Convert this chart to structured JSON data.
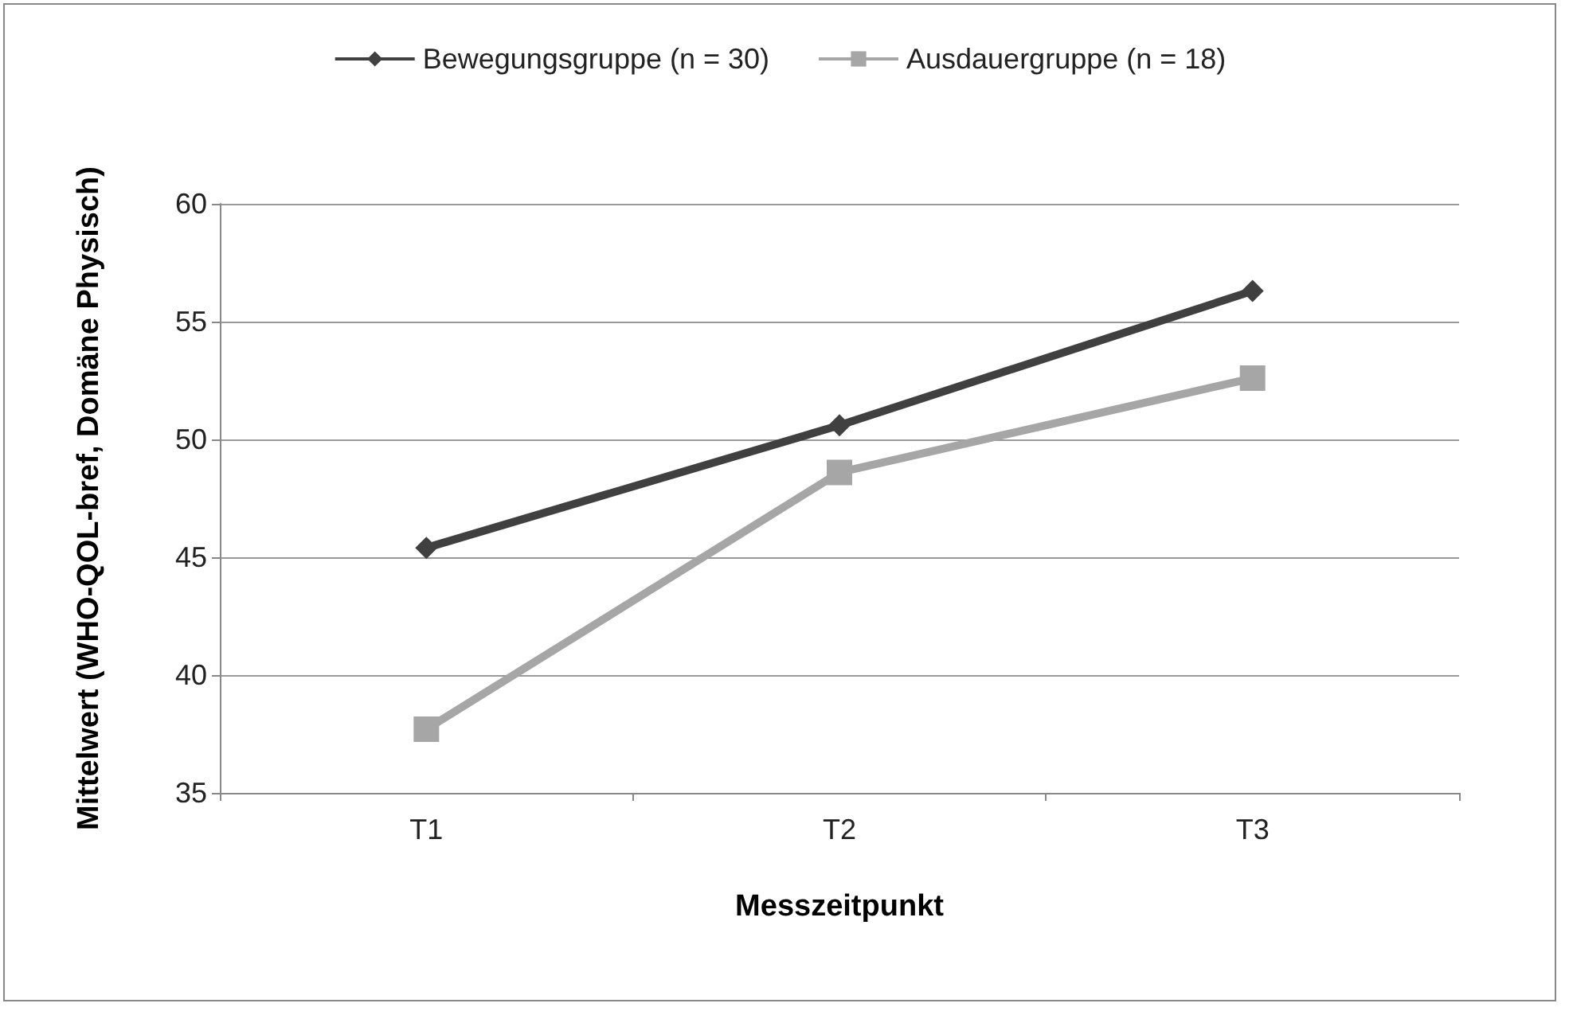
{
  "chart_data": {
    "type": "line",
    "xlabel": "Messzeitpunkt",
    "ylabel": "Mittelwert (WHO-QOL-bref, Domäne Physisch)",
    "categories": [
      "T1",
      "T2",
      "T3"
    ],
    "series": [
      {
        "name": "Bewegungsgruppe (n = 30)",
        "color": "#404040",
        "marker": "diamond",
        "values": [
          45.4,
          50.6,
          56.3
        ]
      },
      {
        "name": "Ausdauergruppe (n = 18)",
        "color": "#a6a6a6",
        "marker": "square",
        "values": [
          37.7,
          48.6,
          52.6
        ]
      }
    ],
    "ylim": [
      35,
      60
    ],
    "yticks": [
      35,
      40,
      45,
      50,
      55,
      60
    ],
    "grid": "y",
    "legend": "top"
  }
}
